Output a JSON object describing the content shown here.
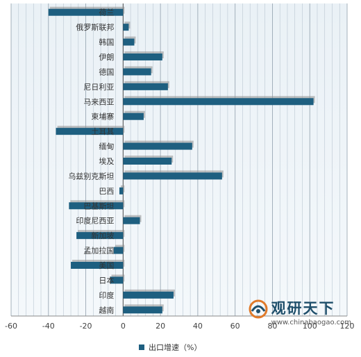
{
  "chart_data": {
    "type": "bar",
    "orientation": "horizontal",
    "categories": [
      "荷兰",
      "俄罗斯联邦",
      "韩国",
      "伊朗",
      "德国",
      "尼日利亚",
      "马来西亚",
      "柬埔寨",
      "土耳其",
      "缅甸",
      "埃及",
      "乌兹别克斯坦",
      "巴西",
      "巴基斯坦",
      "印度尼西亚",
      "新加坡",
      "孟加拉国",
      "美国",
      "日本",
      "印度",
      "越南"
    ],
    "series": [
      {
        "name": "出口增速（%）",
        "values": [
          -40,
          3,
          6,
          21,
          15,
          24,
          102,
          11,
          -36,
          37,
          26,
          53,
          -2,
          -29,
          9,
          -25,
          -5,
          -28,
          -7,
          27,
          21
        ]
      }
    ],
    "xlim": [
      -60,
      120
    ],
    "xticks": [
      -60,
      -40,
      -20,
      0,
      20,
      40,
      60,
      80,
      100,
      120
    ],
    "grid": "vertical",
    "legend_position": "bottom",
    "bar_color": "#1e5f80"
  },
  "watermark": {
    "title": "观研天下",
    "url": "www.chinabaogao.com"
  }
}
